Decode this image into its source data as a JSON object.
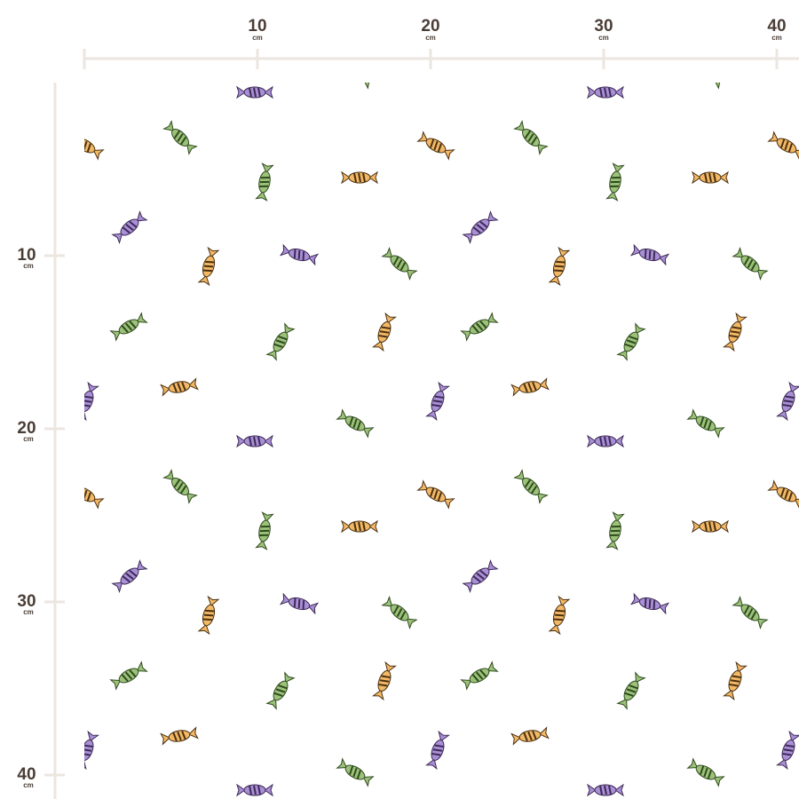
{
  "ruler_top": {
    "unit": "cm",
    "ticks": [
      10,
      20,
      30,
      40
    ]
  },
  "ruler_left": {
    "unit": "cm",
    "ticks": [
      10,
      20,
      30,
      40
    ]
  }
}
